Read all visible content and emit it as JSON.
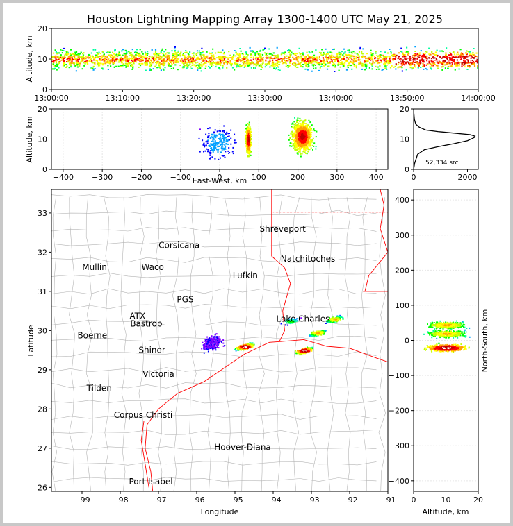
{
  "title": "Houston Lightning Mapping Array 1300-1400 UTC May 21, 2025",
  "colors": {
    "density_scale": [
      "#8000ff",
      "#0000ff",
      "#00a0ff",
      "#00ffa0",
      "#00ff00",
      "#c0ff00",
      "#ffff00",
      "#ffa000",
      "#ff0000",
      "#c00000",
      "#ffffff"
    ],
    "state_border": "#ff0000",
    "coastline": "#ff0000",
    "county_lines": "#b4b4b4",
    "label_orange": "#ff8040",
    "label_blue": "#0000ff",
    "label_green": "#80e000"
  },
  "chart_data": [
    {
      "id": "time_height",
      "type": "heatmap",
      "x_ticks": [
        "13:00:00",
        "13:10:00",
        "13:20:00",
        "13:30:00",
        "13:40:00",
        "13:50:00",
        "14:00:00"
      ],
      "xlim": [
        "13:00:00",
        "14:00:00"
      ],
      "ylabel": "Altitude, km",
      "ylim": [
        0,
        20
      ],
      "y_ticks": [
        "0",
        "10",
        "20"
      ],
      "density_band_km": [
        5,
        17
      ],
      "peak_altitude_km": 10,
      "peak_time": "13:55:00"
    },
    {
      "id": "ew_height",
      "type": "heatmap",
      "xlabel": "East-West, km",
      "xlim": [
        -430,
        430
      ],
      "x_ticks": [
        "−400",
        "−300",
        "−200",
        "−100",
        "0",
        "100",
        "200",
        "300",
        "400"
      ],
      "ylabel": "Altitude, km",
      "ylim": [
        0,
        20
      ],
      "y_ticks": [
        "0",
        "10",
        "20"
      ],
      "cells": [
        {
          "x_km": -5,
          "z_km": 9,
          "intensity": "low"
        },
        {
          "x_km": 72,
          "z_km": 10,
          "intensity": "high"
        },
        {
          "x_km": 210,
          "z_km": 11,
          "intensity": "high"
        }
      ]
    },
    {
      "id": "altitude_histogram",
      "type": "line",
      "annotation": "52,334 src",
      "xlim": [
        0,
        2400
      ],
      "x_ticks": [
        "0",
        "2000"
      ],
      "ylim": [
        0,
        20
      ],
      "y_ticks": [
        "0",
        "10",
        "20"
      ],
      "x": [
        0,
        40,
        150,
        400,
        900,
        1500,
        2000,
        2250,
        2280,
        2100,
        1500,
        900,
        450,
        200,
        80,
        30,
        10,
        0
      ],
      "y": [
        0,
        2,
        5,
        6.5,
        7.5,
        8.5,
        9.5,
        10.5,
        11,
        11.5,
        12,
        12.5,
        13,
        14,
        15,
        16.5,
        18.5,
        20
      ]
    },
    {
      "id": "plan_view",
      "type": "scatter",
      "xlabel": "Longitude",
      "ylabel": "Latitude",
      "xlim": [
        -99.8,
        -91
      ],
      "ylim": [
        25.9,
        33.6
      ],
      "x_ticks": [
        "−99",
        "−98",
        "−97",
        "−96",
        "−95",
        "−94",
        "−93",
        "−92",
        "−91"
      ],
      "y_ticks": [
        "26",
        "27",
        "28",
        "29",
        "30",
        "31",
        "32",
        "33"
      ],
      "cities": [
        {
          "name": "Shreveport",
          "lon": -93.75,
          "lat": 32.52,
          "color": "#000000"
        },
        {
          "name": "Corsicana",
          "lon": -96.46,
          "lat": 32.1,
          "color": "#000000"
        },
        {
          "name": "Natchitoches",
          "lon": -93.09,
          "lat": 31.76,
          "color": "#000000"
        },
        {
          "name": "Mullin",
          "lon": -98.67,
          "lat": 31.55,
          "color": "#ff8040"
        },
        {
          "name": "Waco",
          "lon": -97.15,
          "lat": 31.55,
          "color": "#000000"
        },
        {
          "name": "Lufkin",
          "lon": -94.73,
          "lat": 31.33,
          "color": "#000000"
        },
        {
          "name": "Lake Charles",
          "lon": -93.22,
          "lat": 30.23,
          "color": "#000000"
        },
        {
          "name": "Bastrop",
          "lon": -97.32,
          "lat": 30.1,
          "color": "#000000"
        },
        {
          "name": "Boerne",
          "lon": -98.73,
          "lat": 29.8,
          "color": "#000000"
        },
        {
          "name": "Shiner",
          "lon": -97.17,
          "lat": 29.43,
          "color": "#000000"
        },
        {
          "name": "Victoria",
          "lon": -97.0,
          "lat": 28.82,
          "color": "#000000"
        },
        {
          "name": "Tilden",
          "lon": -98.55,
          "lat": 28.46,
          "color": "#000000"
        },
        {
          "name": "Corpus Christi",
          "lon": -97.4,
          "lat": 27.78,
          "color": "#000000"
        },
        {
          "name": "Hoover-Diana",
          "lon": -94.8,
          "lat": 26.95,
          "color": "#0000ff"
        },
        {
          "name": "Port Isabel",
          "lon": -97.2,
          "lat": 26.08,
          "color": "#000000"
        },
        {
          "name": "ATX",
          "lon": -97.55,
          "lat": 30.3,
          "color": "#ff8040"
        },
        {
          "name": "PGS",
          "lon": -96.3,
          "lat": 30.72,
          "color": "#000000"
        }
      ],
      "cells": [
        {
          "lon": -94.75,
          "lat": 29.6,
          "intensity": "high"
        },
        {
          "lon": -93.2,
          "lat": 29.5,
          "intensity": "high"
        },
        {
          "lon": -92.85,
          "lat": 29.95,
          "intensity": "medium"
        },
        {
          "lon": -92.4,
          "lat": 30.3,
          "intensity": "medium"
        },
        {
          "lon": -93.55,
          "lat": 30.25,
          "intensity": "low"
        },
        {
          "lon": -95.6,
          "lat": 29.7,
          "intensity": "sparse"
        }
      ]
    },
    {
      "id": "ns_height",
      "type": "heatmap",
      "xlabel": "Altitude, km",
      "ylabel": "North-South, km",
      "xlim": [
        0,
        20
      ],
      "x_ticks": [
        "0",
        "10",
        "20"
      ],
      "ylim": [
        -430,
        430
      ],
      "y_ticks": [
        "−400",
        "−300",
        "−200",
        "−100",
        "0",
        "100",
        "200",
        "300",
        "400"
      ],
      "cells": [
        {
          "ns_km": 45,
          "z_km": 10,
          "intensity": "medium"
        },
        {
          "ns_km": 20,
          "z_km": 10,
          "intensity": "medium"
        },
        {
          "ns_km": -20,
          "z_km": 10,
          "intensity": "high"
        }
      ]
    }
  ]
}
